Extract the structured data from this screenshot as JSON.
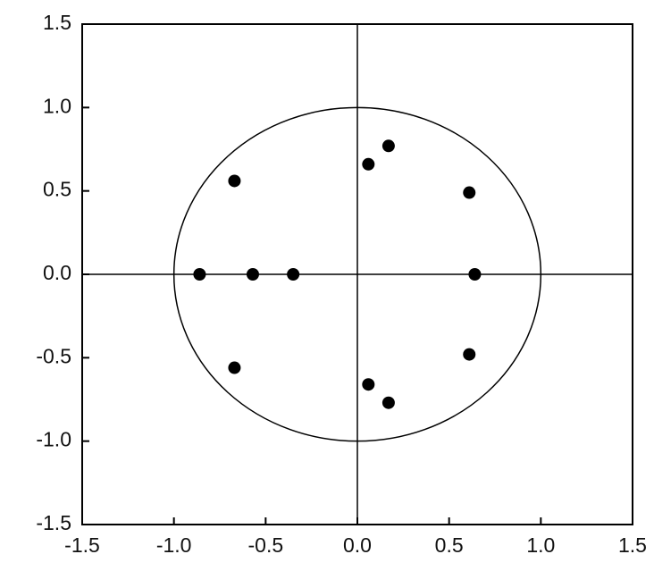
{
  "chart_data": {
    "type": "scatter",
    "x": [
      -0.67,
      0.06,
      0.17,
      0.61,
      -0.86,
      -0.57,
      -0.35,
      0.64,
      -0.67,
      0.06,
      0.17,
      0.61
    ],
    "values": [
      0.56,
      0.66,
      0.77,
      0.49,
      0,
      0,
      0,
      0,
      -0.56,
      -0.66,
      -0.77,
      -0.48
    ],
    "color": "#000000",
    "xlim": [
      -1.5,
      1.5
    ],
    "ylim": [
      -1.5,
      1.5
    ],
    "xticks": [
      -1.5,
      {
        "value": -1,
        "label": "-1.0"
      },
      -0.5,
      {
        "value": 0,
        "label": "0.0"
      },
      0.5,
      {
        "value": 1,
        "label": "1.0"
      },
      1.5
    ],
    "yticks": [
      -1.5,
      {
        "value": -1,
        "label": "-1.0"
      },
      -0.5,
      {
        "value": 0,
        "label": "0.0"
      },
      0.5,
      {
        "value": 1,
        "label": "1.0"
      },
      1.5
    ],
    "zero_lines": true,
    "unit_circle": true
  }
}
